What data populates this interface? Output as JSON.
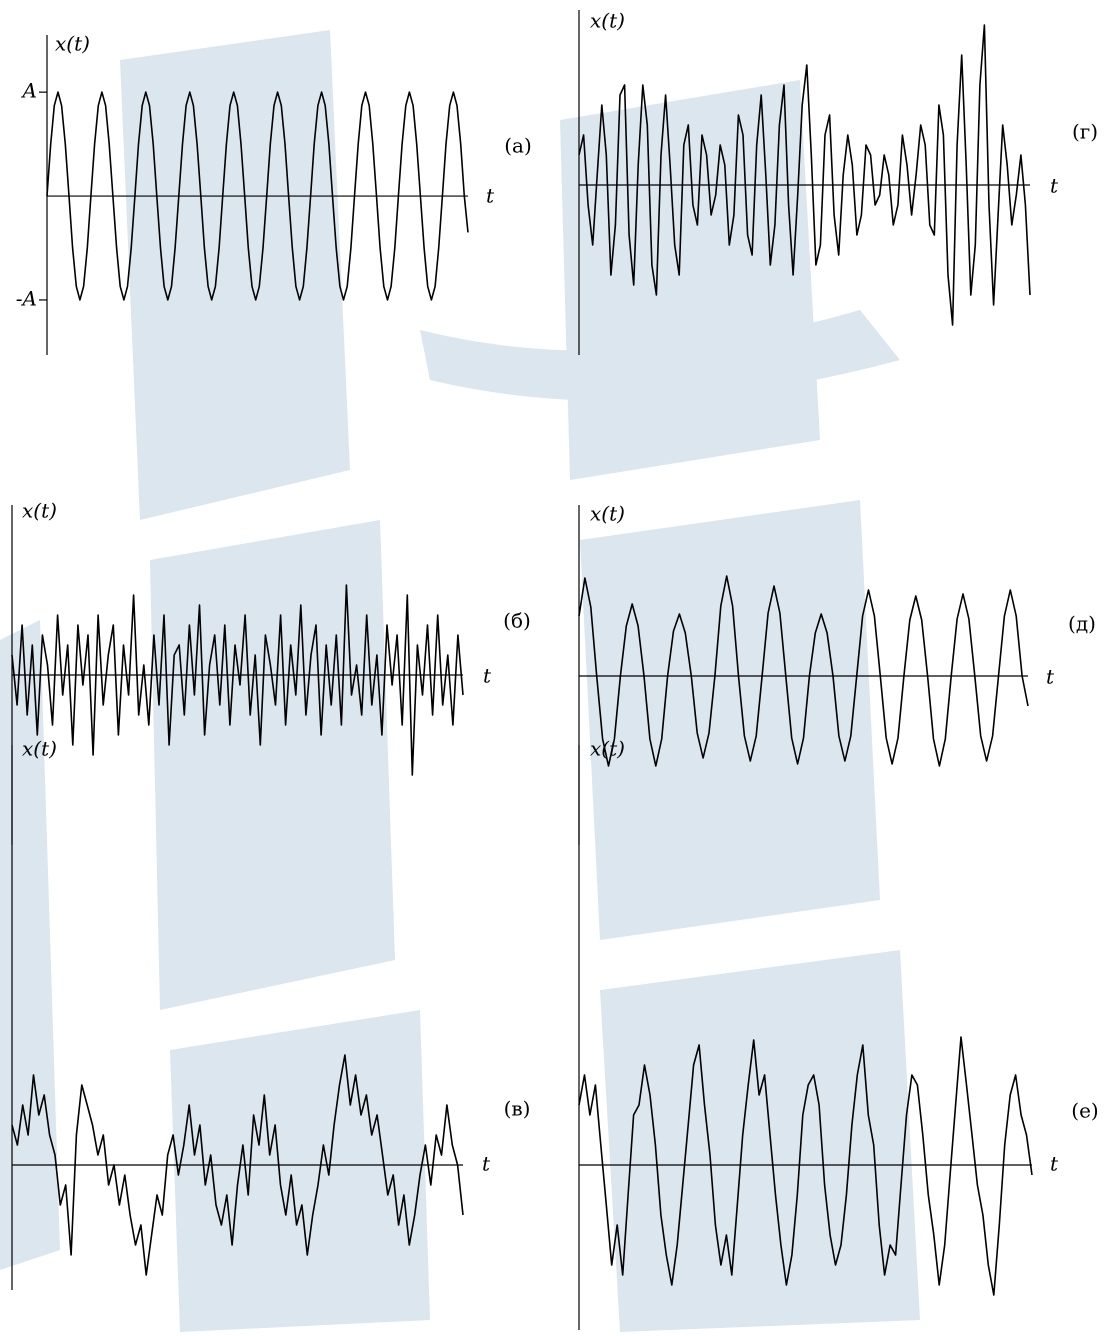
{
  "chart_data": [
    {
      "type": "line",
      "label": "(а)",
      "y_label": "x(t)",
      "x_label": "t",
      "color": "#000000",
      "ylim": [
        -1.53,
        1.55
      ],
      "yticks": [
        {
          "value": 1,
          "label": "A"
        },
        {
          "value": -1,
          "label": "-A"
        }
      ],
      "values": [
        0,
        0.5,
        0.87,
        1,
        0.87,
        0.5,
        0,
        -0.5,
        -0.87,
        -1,
        -0.87,
        -0.5,
        0,
        0.5,
        0.87,
        1,
        0.87,
        0.5,
        0,
        -0.5,
        -0.87,
        -1,
        -0.87,
        -0.5,
        0,
        0.5,
        0.87,
        1,
        0.87,
        0.5,
        0,
        -0.5,
        -0.87,
        -1,
        -0.87,
        -0.5,
        0,
        0.5,
        0.87,
        1,
        0.87,
        0.5,
        0,
        -0.5,
        -0.87,
        -1,
        -0.87,
        -0.5,
        0,
        0.5,
        0.87,
        1,
        0.87,
        0.5,
        0,
        -0.5,
        -0.87,
        -1,
        -0.87,
        -0.5,
        0,
        0.5,
        0.87,
        1,
        0.87,
        0.5,
        0,
        -0.5,
        -0.87,
        -1,
        -0.87,
        -0.5,
        0,
        0.5,
        0.87,
        1,
        0.87,
        0.5,
        0,
        -0.5,
        -0.87,
        -1,
        -0.87,
        -0.5,
        0,
        0.5,
        0.87,
        1,
        0.87,
        0.5,
        0,
        -0.5,
        -0.87,
        -1,
        -0.87,
        -0.5,
        0,
        0.5,
        0.87,
        1,
        0.87,
        0.5,
        0,
        -0.5,
        -0.87,
        -1,
        -0.87,
        -0.5,
        0,
        0.5,
        0.87,
        1,
        0.87,
        0.5,
        0,
        -0.35
      ]
    },
    {
      "type": "line",
      "label": "(б)",
      "y_label": "x(t)",
      "x_label": "t",
      "color": "#000000",
      "ylim": [
        -1.7,
        1.7
      ],
      "values": [
        0.2,
        -0.3,
        0.5,
        -0.4,
        0.3,
        -0.6,
        0.4,
        0.1,
        -0.5,
        0.6,
        -0.2,
        0.3,
        -0.7,
        0.5,
        -0.1,
        0.4,
        -0.8,
        0.6,
        -0.3,
        0.2,
        0.5,
        -0.6,
        0.3,
        -0.2,
        0.8,
        -0.4,
        0.1,
        -0.5,
        0.4,
        -0.3,
        0.6,
        -0.7,
        0.2,
        0.3,
        -0.4,
        0.5,
        -0.2,
        0.7,
        -0.6,
        0.1,
        0.4,
        -0.3,
        0.5,
        -0.5,
        0.3,
        -0.1,
        0.6,
        -0.4,
        0.2,
        -0.7,
        0.4,
        0.1,
        -0.3,
        0.6,
        -0.5,
        0.3,
        -0.2,
        0.7,
        -0.4,
        0.2,
        0.5,
        -0.6,
        0.3,
        -0.3,
        0.4,
        -0.5,
        0.9,
        -0.2,
        0.1,
        -0.4,
        0.6,
        -0.3,
        0.2,
        -0.6,
        0.5,
        -0.1,
        0.4,
        -0.5,
        0.8,
        -1.0,
        0.3,
        -0.2,
        0.5,
        -0.4,
        0.6,
        -0.3,
        0.2,
        -0.5,
        0.4,
        -0.2
      ]
    },
    {
      "type": "line",
      "label": "(в)",
      "y_label": "x(t)",
      "x_label": "t",
      "color": "#000000",
      "ylim": [
        -1.25,
        4.2
      ],
      "values": [
        0.4,
        0.2,
        0.6,
        0.3,
        0.9,
        0.5,
        0.7,
        0.3,
        0.1,
        -0.4,
        -0.2,
        -0.9,
        0.3,
        0.8,
        0.6,
        0.4,
        0.1,
        0.3,
        -0.2,
        0.0,
        -0.4,
        -0.1,
        -0.5,
        -0.8,
        -0.6,
        -1.1,
        -0.7,
        -0.3,
        -0.5,
        0.1,
        0.3,
        -0.1,
        0.2,
        0.6,
        0.1,
        0.4,
        -0.2,
        0.1,
        -0.4,
        -0.6,
        -0.3,
        -0.8,
        -0.2,
        0.2,
        -0.3,
        0.5,
        0.2,
        0.7,
        0.1,
        0.4,
        -0.2,
        -0.5,
        -0.1,
        -0.6,
        -0.4,
        -0.9,
        -0.5,
        -0.2,
        0.2,
        -0.1,
        0.4,
        0.8,
        1.1,
        0.6,
        0.9,
        0.5,
        0.7,
        0.3,
        0.5,
        0.1,
        -0.3,
        -0.1,
        -0.6,
        -0.3,
        -0.8,
        -0.5,
        -0.1,
        0.2,
        -0.2,
        0.3,
        0.1,
        0.6,
        0.2,
        0.0,
        -0.5
      ]
    },
    {
      "type": "line",
      "label": "(г)",
      "y_label": "x(t)",
      "x_label": "t",
      "color": "#000000",
      "ylim": [
        -1.7,
        1.75
      ],
      "values": [
        0.3,
        0.5,
        -0.2,
        -0.6,
        0.1,
        0.8,
        0.3,
        -0.9,
        -0.4,
        0.9,
        1.0,
        -0.5,
        -1.0,
        0.2,
        1.0,
        0.6,
        -0.8,
        -1.1,
        0.3,
        0.9,
        0.2,
        -0.6,
        -0.9,
        0.4,
        0.6,
        -0.2,
        -0.4,
        0.5,
        0.3,
        -0.3,
        -0.1,
        0.4,
        0.2,
        -0.6,
        -0.3,
        0.7,
        0.5,
        -0.5,
        -0.7,
        0.4,
        0.9,
        0.1,
        -0.8,
        -0.4,
        0.6,
        1.0,
        -0.2,
        -0.9,
        -0.1,
        0.8,
        1.2,
        0.3,
        -0.8,
        -0.6,
        0.5,
        0.7,
        -0.3,
        -0.7,
        0.1,
        0.5,
        0.2,
        -0.5,
        -0.3,
        0.4,
        0.3,
        -0.2,
        -0.1,
        0.3,
        0.1,
        -0.4,
        -0.2,
        0.5,
        0.2,
        -0.3,
        0.1,
        0.6,
        0.4,
        -0.4,
        -0.5,
        0.8,
        0.5,
        -0.9,
        -1.4,
        0.4,
        1.3,
        0.2,
        -1.1,
        -0.6,
        1.0,
        1.6,
        -0.2,
        -1.2,
        -0.3,
        0.6,
        0.2,
        -0.4,
        -0.1,
        0.3,
        -0.2,
        -1.1
      ]
    },
    {
      "type": "line",
      "label": "(д)",
      "y_label": "x(t)",
      "x_label": "t",
      "color": "#000000",
      "ylim": [
        -1.69,
        1.71
      ],
      "values": [
        0.6,
        0.98,
        0.69,
        0,
        -0.63,
        -0.9,
        -0.63,
        0,
        0.5,
        0.72,
        0.5,
        0,
        -0.63,
        -0.9,
        -0.63,
        0,
        0.45,
        0.62,
        0.43,
        0,
        -0.57,
        -0.82,
        -0.57,
        0,
        0.7,
        1.0,
        0.7,
        0,
        -0.6,
        -0.85,
        -0.6,
        0,
        0.63,
        0.9,
        0.63,
        0,
        -0.62,
        -0.88,
        -0.62,
        0,
        0.43,
        0.62,
        0.43,
        0,
        -0.6,
        -0.85,
        -0.6,
        0,
        0.6,
        0.86,
        0.6,
        0,
        -0.62,
        -0.88,
        -0.62,
        0,
        0.56,
        0.8,
        0.56,
        0,
        -0.63,
        -0.9,
        -0.63,
        0,
        0.57,
        0.82,
        0.57,
        0,
        -0.6,
        -0.85,
        -0.6,
        0,
        0.6,
        0.86,
        0.6,
        0,
        -0.3
      ]
    },
    {
      "type": "line",
      "label": "(е)",
      "y_label": "x(t)",
      "x_label": "t",
      "color": "#000000",
      "ylim": [
        -1.65,
        4.2
      ],
      "values": [
        0.6,
        0.9,
        0.5,
        0.8,
        0.2,
        -0.4,
        -1.0,
        -0.6,
        -1.1,
        -0.3,
        0.5,
        0.6,
        1.0,
        0.7,
        0.2,
        -0.5,
        -0.9,
        -1.2,
        -0.8,
        -0.2,
        0.4,
        1.0,
        1.2,
        0.6,
        0.1,
        -0.6,
        -1.0,
        -0.7,
        -1.1,
        -0.4,
        0.3,
        0.8,
        1.25,
        0.7,
        0.9,
        0.3,
        -0.3,
        -0.8,
        -1.2,
        -0.9,
        -0.3,
        0.5,
        0.8,
        0.9,
        0.6,
        -0.2,
        -0.7,
        -1.0,
        -0.8,
        -0.3,
        0.4,
        0.9,
        1.2,
        0.5,
        0.2,
        -0.6,
        -1.1,
        -0.8,
        -0.9,
        -0.2,
        0.5,
        0.9,
        0.8,
        0.3,
        -0.3,
        -0.7,
        -1.2,
        -0.8,
        -0.1,
        0.6,
        1.28,
        0.8,
        0.3,
        -0.2,
        -0.5,
        -1.0,
        -1.3,
        -0.6,
        0.2,
        0.7,
        0.9,
        0.5,
        0.3,
        -0.1
      ]
    }
  ]
}
